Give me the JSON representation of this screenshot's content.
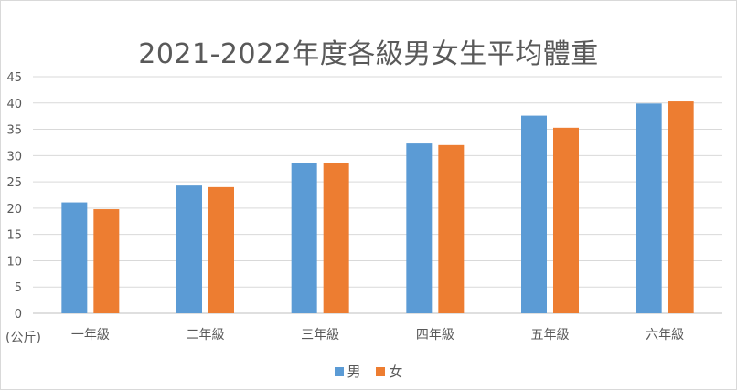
{
  "chart_data": {
    "type": "bar",
    "title": "2021-2022年度各級男女生平均體重",
    "ylabel": "(公斤)",
    "categories": [
      "一年級",
      "二年級",
      "三年級",
      "四年級",
      "五年級",
      "六年級"
    ],
    "series": [
      {
        "name": "男",
        "color": "#5b9bd5",
        "values": [
          21.1,
          24.3,
          28.5,
          32.3,
          37.6,
          39.9
        ]
      },
      {
        "name": "女",
        "color": "#ed7d31",
        "values": [
          19.8,
          24.0,
          28.5,
          32.0,
          35.3,
          40.3
        ]
      }
    ],
    "ylim": [
      0,
      45
    ],
    "yticks": [
      "0",
      "5",
      "10",
      "15",
      "20",
      "25",
      "30",
      "35",
      "40",
      "45"
    ],
    "grid": true,
    "legend": "bottom"
  }
}
